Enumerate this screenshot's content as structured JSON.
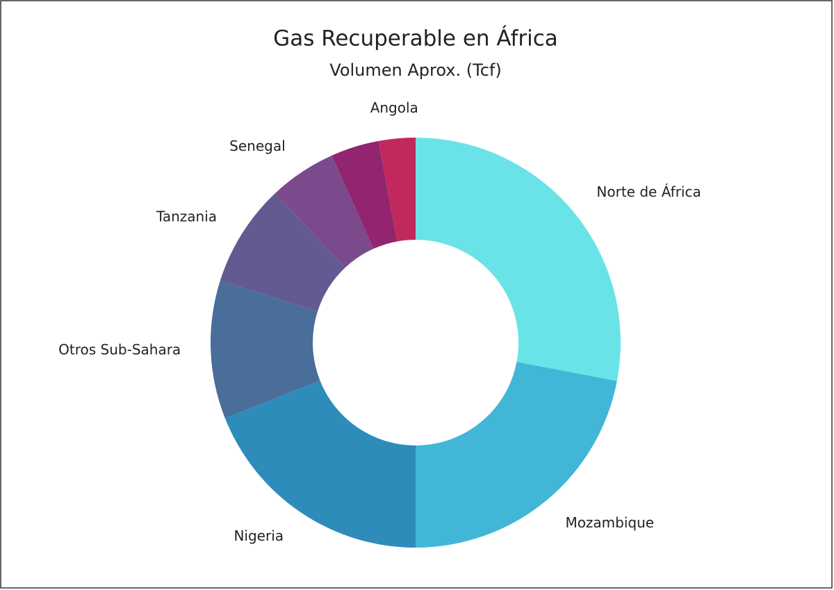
{
  "chart_data": {
    "type": "donut",
    "title": "Gas Recuperable en África",
    "subtitle": "Volumen Aprox. (Tcf)",
    "categories": [
      "Norte de África",
      "Mozambique",
      "Nigeria",
      "Otros Sub-Sahara",
      "Tanzania",
      "Senegal",
      null,
      "Angola"
    ],
    "values": [
      28,
      22,
      19,
      10.9,
      8.1,
      5.3,
      3.8,
      2.9
    ],
    "colors": [
      "#6ae3e8",
      "#42b6d6",
      "#2e8cba",
      "#4a6d9a",
      "#635a91",
      "#7b4a8c",
      "#922470",
      "#c1295c"
    ]
  }
}
